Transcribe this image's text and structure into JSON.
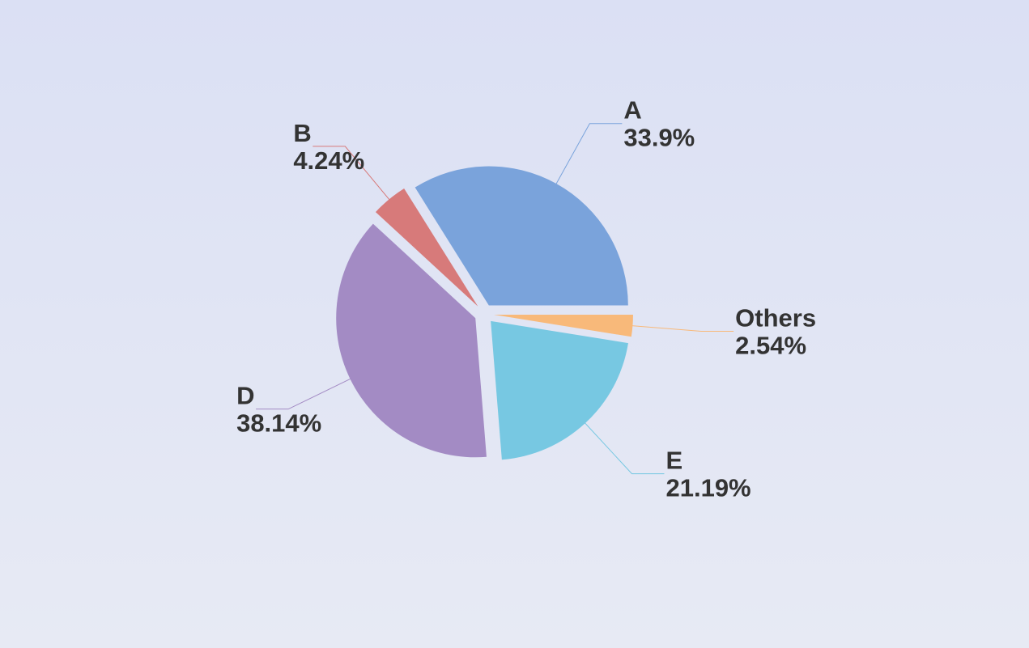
{
  "chart_data": {
    "type": "pie",
    "categories": [
      "A",
      "B",
      "D",
      "E",
      "Others"
    ],
    "values": [
      33.9,
      4.24,
      38.14,
      21.19,
      2.54
    ],
    "value_labels": [
      "33.9%",
      "4.24%",
      "38.14%",
      "21.19%",
      "2.54%"
    ],
    "colors": [
      "#7aa3db",
      "#d77a7a",
      "#a38bc4",
      "#77c8e2",
      "#f8b97a"
    ]
  }
}
